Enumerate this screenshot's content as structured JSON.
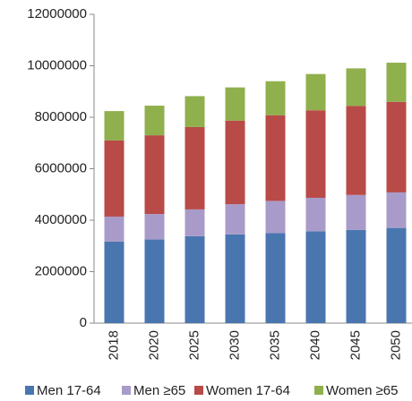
{
  "chart_data": {
    "type": "stacked_bar",
    "categories": [
      "2018",
      "2020",
      "2025",
      "2030",
      "2035",
      "2040",
      "2045",
      "2050"
    ],
    "series": [
      {
        "name": "Men 17-64",
        "color": "#4a76b0",
        "values": [
          3170000,
          3250000,
          3380000,
          3450000,
          3500000,
          3570000,
          3620000,
          3700000
        ]
      },
      {
        "name": "Men ≥65",
        "color": "#a99bc9",
        "values": [
          970000,
          990000,
          1040000,
          1170000,
          1250000,
          1300000,
          1360000,
          1380000
        ]
      },
      {
        "name": "Women 17-64",
        "color": "#b84a47",
        "values": [
          2960000,
          3060000,
          3200000,
          3250000,
          3330000,
          3400000,
          3460000,
          3520000
        ]
      },
      {
        "name": "Women ≥65",
        "color": "#8fb04c",
        "values": [
          1140000,
          1150000,
          1200000,
          1290000,
          1320000,
          1410000,
          1460000,
          1520000
        ]
      }
    ],
    "ylim": [
      0,
      12000000
    ],
    "yticks": [
      0,
      2000000,
      4000000,
      6000000,
      8000000,
      10000000,
      12000000
    ],
    "legend": "bottom"
  }
}
